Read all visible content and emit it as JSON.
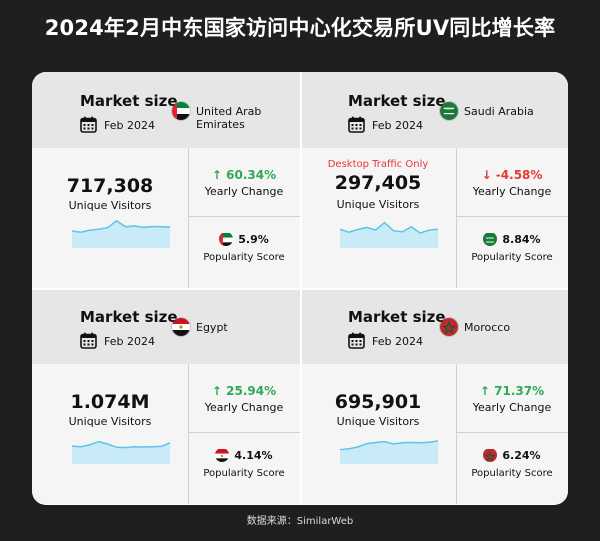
{
  "title": "2024年2月中东国家访问中心化交易所UV同比增长率",
  "source": "数据来源：SimilarWeb",
  "colors": {
    "positive": "#2eaa56",
    "negative": "#e53935",
    "sparkline_line": "#5ec4e6",
    "sparkline_fill": "#c9ebf7"
  },
  "quadrants": [
    {
      "heading": "Market size",
      "period": "Feb 2024",
      "country": "United Arab Emirates",
      "flag": "uae",
      "note": "",
      "visitors": "717,308",
      "visitors_label": "Unique Visitors",
      "yearly_change": "↑ 60.34%",
      "yearly_change_label": "Yearly Change",
      "direction": "up",
      "popularity": "5.9%",
      "popularity_label": "Popularity Score",
      "trend": [
        5,
        4.6,
        5.3,
        5.6,
        6.1,
        8.4,
        6.4,
        6.7,
        6.2,
        6.5,
        6.4,
        6.3
      ]
    },
    {
      "heading": "Market size",
      "period": "Feb 2024",
      "country": "Saudi Arabia",
      "flag": "ksa",
      "note": "Desktop Traffic Only",
      "visitors": "297,405",
      "visitors_label": "Unique Visitors",
      "yearly_change": "↓ -4.58%",
      "yearly_change_label": "Yearly Change",
      "direction": "down",
      "popularity": "8.84%",
      "popularity_label": "Popularity Score",
      "trend": [
        5.6,
        4.6,
        5.5,
        6.2,
        5.3,
        7.8,
        5.1,
        4.7,
        6.4,
        4.3,
        5.3,
        5.6
      ]
    },
    {
      "heading": "Market size",
      "period": "Feb 2024",
      "country": "Egypt",
      "flag": "egypt",
      "note": "",
      "visitors": "1.074M",
      "visitors_label": "Unique Visitors",
      "yearly_change": "↑ 25.94%",
      "yearly_change_label": "Yearly Change",
      "direction": "up",
      "popularity": "4.14%",
      "popularity_label": "Popularity Score",
      "trend": [
        5.3,
        5.1,
        5.7,
        6.8,
        6.0,
        4.9,
        4.8,
        5.1,
        5.0,
        5.1,
        5.2,
        6.4
      ]
    },
    {
      "heading": "Market size",
      "period": "Feb 2024",
      "country": "Morocco",
      "flag": "morocco",
      "note": "",
      "visitors": "695,901",
      "visitors_label": "Unique Visitors",
      "yearly_change": "↑ 71.37%",
      "yearly_change_label": "Yearly Change",
      "direction": "up",
      "popularity": "6.24%",
      "popularity_label": "Popularity Score",
      "trend": [
        4.1,
        4.4,
        5.0,
        6.1,
        6.5,
        6.8,
        6.0,
        6.4,
        6.5,
        6.4,
        6.6,
        7.0
      ]
    }
  ]
}
